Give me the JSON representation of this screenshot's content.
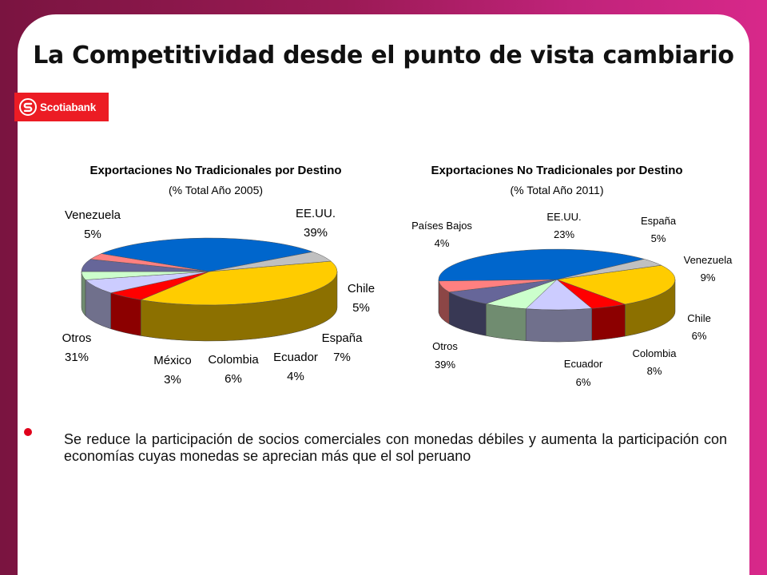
{
  "slide": {
    "title": "La Competitividad desde el punto de vista cambiario",
    "logo": {
      "name": "Scotiabank",
      "color": "#ec1c24"
    },
    "bullet": "Se reduce la participación de socios comerciales con monedas débiles y aumenta la participación con economías cuyas monedas se aprecian más que el sol peruano"
  },
  "chart_data": [
    {
      "type": "pie",
      "title": "Exportaciones No Tradicionales por Destino",
      "subtitle": "(% Total Año 2005)",
      "three_d": true,
      "legend": "none",
      "slices": [
        {
          "label": "EE.UU.",
          "value": 39,
          "display": "39%",
          "color": "#ffcc00"
        },
        {
          "label": "Chile",
          "value": 5,
          "display": "5%",
          "color": "#ff0000"
        },
        {
          "label": "España",
          "value": 7,
          "display": "7%",
          "color": "#ccccff"
        },
        {
          "label": "Ecuador",
          "value": 4,
          "display": "4%",
          "color": "#ccffcc"
        },
        {
          "label": "Colombia",
          "value": 6,
          "display": "6%",
          "color": "#666699"
        },
        {
          "label": "México",
          "value": 3,
          "display": "3%",
          "color": "#ff8080"
        },
        {
          "label": "Otros",
          "value": 31,
          "display": "31%",
          "color": "#0066cc"
        },
        {
          "label": "Venezuela",
          "value": 5,
          "display": "5%",
          "color": "#c0c0c0"
        }
      ]
    },
    {
      "type": "pie",
      "title": "Exportaciones No Tradicionales por Destino",
      "subtitle": "(% Total Año 2011)",
      "three_d": true,
      "legend": "none",
      "slices": [
        {
          "label": "EE.UU.",
          "value": 23,
          "display": "23%",
          "color": "#ffcc00"
        },
        {
          "label": "España",
          "value": 5,
          "display": "5%",
          "color": "#ff0000"
        },
        {
          "label": "Venezuela",
          "value": 9,
          "display": "9%",
          "color": "#ccccff"
        },
        {
          "label": "Chile",
          "value": 6,
          "display": "6%",
          "color": "#ccffcc"
        },
        {
          "label": "Colombia",
          "value": 8,
          "display": "8%",
          "color": "#666699"
        },
        {
          "label": "Ecuador",
          "value": 6,
          "display": "6%",
          "color": "#ff8080"
        },
        {
          "label": "Otros",
          "value": 39,
          "display": "39%",
          "color": "#0066cc"
        },
        {
          "label": "Países Bajos",
          "value": 4,
          "display": "4%",
          "color": "#c0c0c0"
        }
      ]
    }
  ]
}
